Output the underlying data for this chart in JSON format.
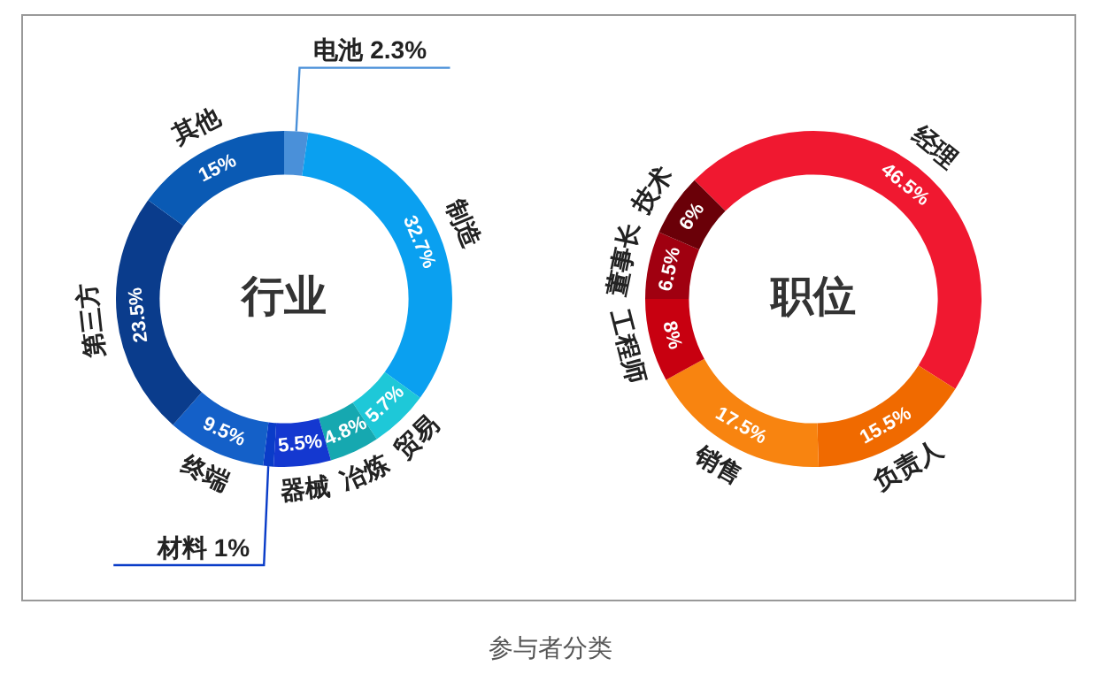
{
  "chart_data": [
    {
      "type": "donut",
      "title": "行业",
      "categories": [
        "电池",
        "制造",
        "贸易",
        "冶炼",
        "器械",
        "材料",
        "终端",
        "第三方",
        "其他"
      ],
      "values": [
        2.3,
        32.7,
        5.7,
        4.8,
        5.5,
        1,
        9.5,
        23.5,
        15
      ],
      "value_labels": [
        "2.3%",
        "32.7%",
        "5.7%",
        "4.8%",
        "5.5%",
        "1%",
        "9.5%",
        "23.5%",
        "15%"
      ],
      "colors": [
        "#4a90d9",
        "#0aa0f0",
        "#1ec8d8",
        "#16a8b0",
        "#1438d0",
        "#0a3cc8",
        "#1460c8",
        "#0a3c8c",
        "#0a5ab4"
      ],
      "annotations": [
        "参与者分类"
      ]
    },
    {
      "type": "donut",
      "title": "职位",
      "categories": [
        "经理",
        "负责人",
        "销售",
        "工程师",
        "董事长",
        "技术"
      ],
      "values": [
        46.5,
        15.5,
        17.5,
        8,
        6.5,
        6
      ],
      "value_labels": [
        "46.5%",
        "15.5%",
        "17.5%",
        "8%",
        "6.5%",
        "6%"
      ],
      "colors": [
        "#f01830",
        "#f06a00",
        "#f88410",
        "#c80010",
        "#a00010",
        "#6a0008"
      ]
    }
  ]
}
